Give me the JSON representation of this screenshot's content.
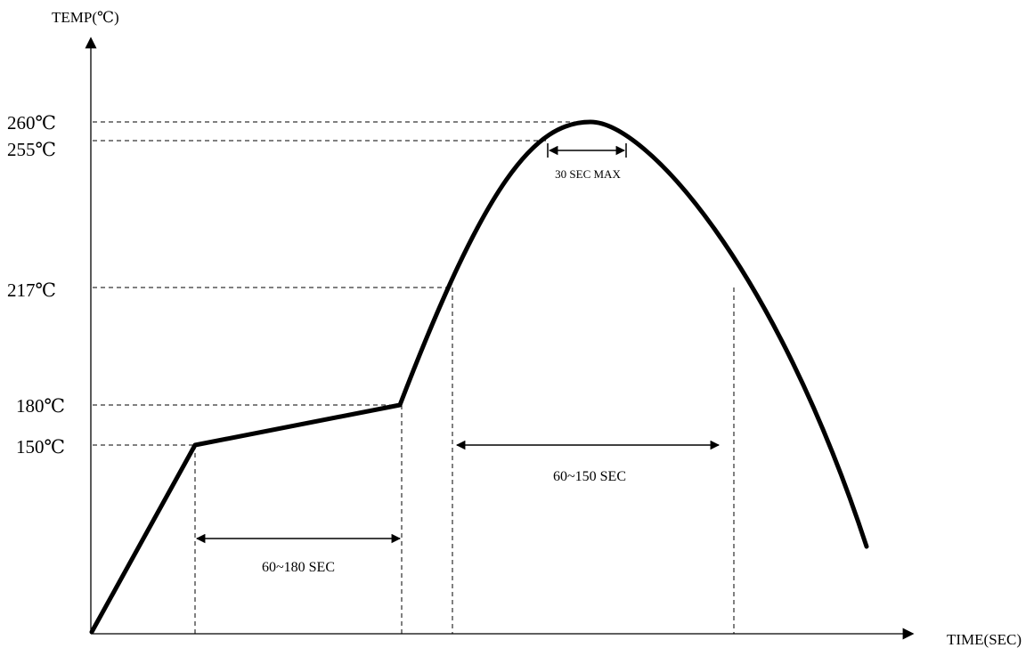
{
  "chart_data": {
    "type": "line",
    "title": "",
    "xlabel": "TIME(SEC)",
    "ylabel": "TEMP(℃)",
    "grid": false,
    "legend": "none",
    "y_ticks": [
      {
        "value": 260,
        "label": "260℃"
      },
      {
        "value": 255,
        "label": "255℃"
      },
      {
        "value": 217,
        "label": "217℃"
      },
      {
        "value": 180,
        "label": "180℃"
      },
      {
        "value": 150,
        "label": "150℃"
      }
    ],
    "x_axis_ticks": [],
    "annotations": [
      {
        "id": "preheat",
        "label": "60~180 SEC",
        "from_temp": 150,
        "to_temp": 180
      },
      {
        "id": "above-liquidus",
        "label": "60~150 SEC",
        "threshold_temp": 217
      },
      {
        "id": "peak",
        "label": "30 SEC MAX",
        "threshold_temp": 255
      }
    ],
    "profile_key_points": [
      {
        "label": "start",
        "temp": 25
      },
      {
        "label": "preheat start",
        "temp": 150
      },
      {
        "label": "preheat end",
        "temp": 180
      },
      {
        "label": "reach 217",
        "temp": 217
      },
      {
        "label": "peak",
        "temp": 260
      },
      {
        "label": "cool to 217",
        "temp": 217
      }
    ],
    "line_color": "#000000"
  }
}
